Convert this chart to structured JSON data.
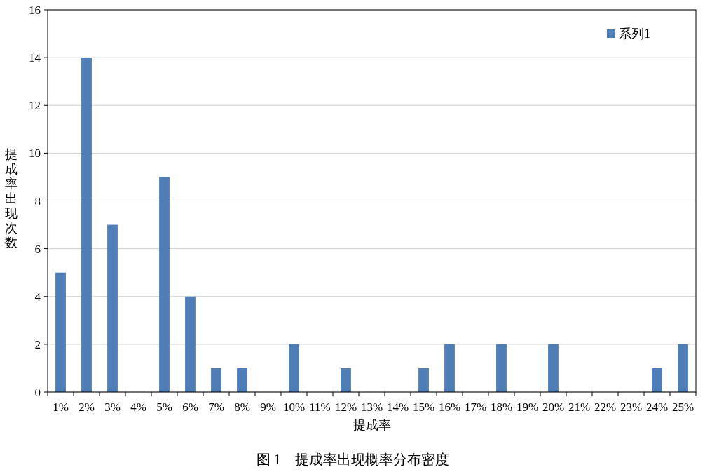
{
  "chart_data": {
    "type": "bar",
    "xlabel": "提成率",
    "ylabel": "提成率出现次数",
    "annotations": [
      "图 1　提成率出现概率分布密度"
    ],
    "categories": [
      "1%",
      "2%",
      "3%",
      "4%",
      "5%",
      "6%",
      "7%",
      "8%",
      "9%",
      "10%",
      "11%",
      "12%",
      "13%",
      "14%",
      "15%",
      "16%",
      "17%",
      "18%",
      "19%",
      "20%",
      "21%",
      "22%",
      "23%",
      "24%",
      "25%"
    ],
    "series": [
      {
        "name": "系列1",
        "color": "#4f7db5",
        "values": [
          5,
          14,
          7,
          0,
          9,
          4,
          1,
          1,
          0,
          2,
          0,
          1,
          0,
          0,
          1,
          2,
          0,
          2,
          0,
          2,
          0,
          0,
          0,
          1,
          2
        ]
      }
    ],
    "ylim": [
      0,
      16
    ],
    "yticks": [
      0,
      2,
      4,
      6,
      8,
      10,
      12,
      14,
      16
    ],
    "grid": "y",
    "legend": "top right"
  }
}
